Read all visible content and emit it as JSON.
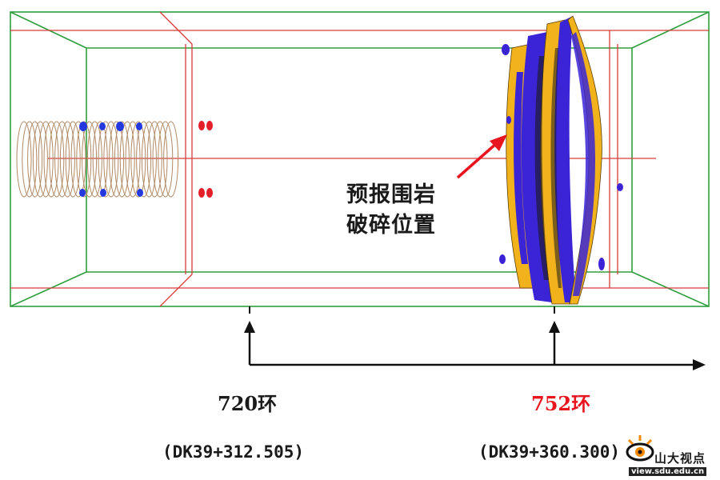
{
  "annotation": {
    "line1": "预报围岩",
    "line2": "破碎位置"
  },
  "markers": [
    {
      "ring": "720环",
      "mileage": "(DK39+312.505)",
      "color": "#1a1a1a"
    },
    {
      "ring": "752环",
      "mileage": "(DK39+360.300)",
      "color": "#e8141e"
    }
  ],
  "logo": {
    "name": "山大视点",
    "url": "view.sdu.edu.cn"
  },
  "colors": {
    "outer_box": "#2e9e3e",
    "inner_box": "#d83c3c",
    "anomaly_yellow": "#f2b21c",
    "anomaly_blue": "#3a24d6",
    "sensor_blue": "#2438e0",
    "sensor_red": "#e3202a",
    "coil": "#b08a66",
    "arrow": "#e8141e"
  }
}
